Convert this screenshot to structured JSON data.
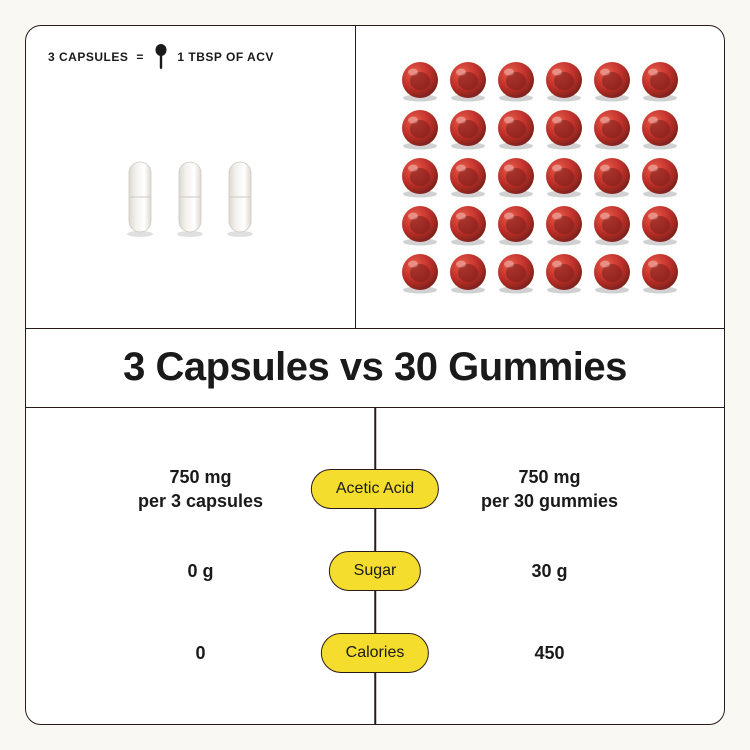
{
  "equivalence": {
    "left": "3 CAPSULES",
    "equals": "=",
    "right": "1 TBSP OF ACV"
  },
  "visuals": {
    "capsule_count": 3,
    "gummy_grid": {
      "rows": 5,
      "cols": 6
    },
    "capsule_fill": "#f3f1ed",
    "capsule_stroke": "#cfc9c0",
    "gummy_fill": "#c0312a",
    "gummy_highlight": "#e85a4a",
    "gummy_shadow": "#7a1f1a",
    "pill_bg": "#f5dd2e",
    "card_bg": "#ffffff",
    "page_bg": "#faf8f2",
    "border_color": "#2a1a1a"
  },
  "title": "3 Capsules vs 30 Gummies",
  "compare": {
    "metrics": [
      {
        "label": "Acetic Acid",
        "left_line1": "750 mg",
        "left_line2": "per 3 capsules",
        "right_line1": "750 mg",
        "right_line2": "per 30 gummies"
      },
      {
        "label": "Sugar",
        "left_line1": "0 g",
        "left_line2": "",
        "right_line1": "30 g",
        "right_line2": ""
      },
      {
        "label": "Calories",
        "left_line1": "0",
        "left_line2": "",
        "right_line1": "450",
        "right_line2": ""
      }
    ]
  }
}
